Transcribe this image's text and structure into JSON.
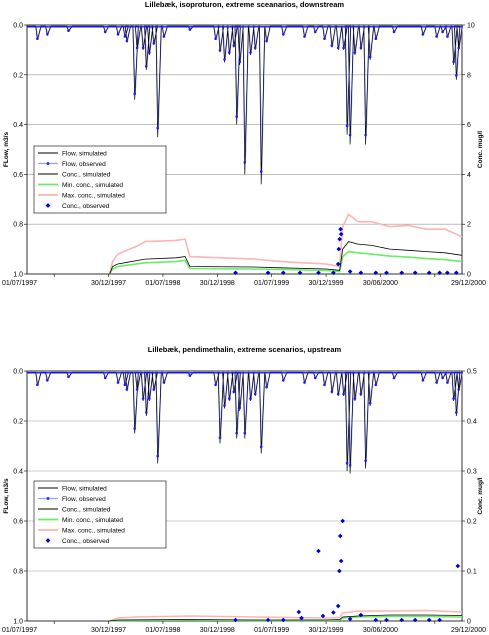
{
  "chart_data": [
    {
      "type": "line",
      "title": "Lillebæk, isoproturon, extreme sceanarios, downstream",
      "ylabel": "FLow, m3/s",
      "y2label": "Conc. mug/l",
      "xlim": [
        "1997-01-01",
        "2000-12-29"
      ],
      "ylim": [
        0,
        1.0
      ],
      "y_inverted": true,
      "y2lim": [
        0,
        10
      ],
      "x_tick_labels": [
        "01/07/1997",
        "30/12/1997",
        "01/07/1998",
        "30/12/1998",
        "01/07/1999",
        "30/12/1999",
        "30/06/2000",
        "29/12/2000"
      ],
      "y_tick_labels": [
        "0.0",
        "0.2",
        "0.4",
        "0.6",
        "0.8",
        "1.0"
      ],
      "y2_tick_labels": [
        "10",
        "8",
        "6",
        "4",
        "2",
        "0"
      ],
      "grid": "horizontal",
      "legend": {
        "position": "middle-left",
        "entries": [
          "Flow, simulated",
          "Flow, observed",
          "Conc., simulated",
          "Min. conc., simulated",
          "Max. conc., simulated",
          "Conc., observed"
        ]
      },
      "colors": {
        "flow_simulated": "#000000",
        "flow_observed": "#1a1aff",
        "conc_simulated": "#000000",
        "min_conc": "#66ee66",
        "max_conc": "#ffb3b3",
        "conc_observed": "#0000cc"
      },
      "flow_baseline": 0.005,
      "flow_peaks": [
        {
          "x": "1997-02-05",
          "y": 0.06
        },
        {
          "x": "1997-03-10",
          "y": 0.04
        },
        {
          "x": "1997-05-20",
          "y": 0.025
        },
        {
          "x": "1997-09-20",
          "y": 0.03
        },
        {
          "x": "1997-11-02",
          "y": 0.04
        },
        {
          "x": "1997-11-25",
          "y": 0.05
        },
        {
          "x": "1997-12-02",
          "y": 0.07
        },
        {
          "x": "1997-12-28",
          "y": 0.3
        },
        {
          "x": "1998-01-05",
          "y": 0.1
        },
        {
          "x": "1998-01-25",
          "y": 0.1
        },
        {
          "x": "1998-02-05",
          "y": 0.18
        },
        {
          "x": "1998-02-15",
          "y": 0.12
        },
        {
          "x": "1998-03-02",
          "y": 0.08
        },
        {
          "x": "1998-03-15",
          "y": 0.45
        },
        {
          "x": "1998-04-05",
          "y": 0.05
        },
        {
          "x": "1998-07-01",
          "y": 0.02
        },
        {
          "x": "1998-09-25",
          "y": 0.06
        },
        {
          "x": "1998-10-10",
          "y": 0.11
        },
        {
          "x": "1998-10-25",
          "y": 0.15
        },
        {
          "x": "1998-11-10",
          "y": 0.12
        },
        {
          "x": "1998-11-25",
          "y": 0.09
        },
        {
          "x": "1998-12-05",
          "y": 0.4
        },
        {
          "x": "1998-12-15",
          "y": 0.16
        },
        {
          "x": "1999-01-01",
          "y": 0.6
        },
        {
          "x": "1999-01-20",
          "y": 0.12
        },
        {
          "x": "1999-02-05",
          "y": 0.1
        },
        {
          "x": "1999-02-25",
          "y": 0.64
        },
        {
          "x": "1999-03-15",
          "y": 0.07
        },
        {
          "x": "1999-05-10",
          "y": 0.04
        },
        {
          "x": "1999-07-20",
          "y": 0.05
        },
        {
          "x": "1999-08-25",
          "y": 0.03
        },
        {
          "x": "1999-09-25",
          "y": 0.06
        },
        {
          "x": "1999-10-20",
          "y": 0.09
        },
        {
          "x": "1999-11-10",
          "y": 0.1
        },
        {
          "x": "1999-11-28",
          "y": 0.1
        },
        {
          "x": "1999-12-10",
          "y": 0.44
        },
        {
          "x": "1999-12-20",
          "y": 0.48
        },
        {
          "x": "2000-01-05",
          "y": 0.12
        },
        {
          "x": "2000-01-25",
          "y": 0.1
        },
        {
          "x": "2000-02-10",
          "y": 0.48
        },
        {
          "x": "2000-02-25",
          "y": 0.14
        },
        {
          "x": "2000-03-15",
          "y": 0.06
        },
        {
          "x": "2000-05-15",
          "y": 0.03
        },
        {
          "x": "2000-08-20",
          "y": 0.04
        },
        {
          "x": "2000-10-05",
          "y": 0.05
        },
        {
          "x": "2000-10-25",
          "y": 0.03
        },
        {
          "x": "2000-11-10",
          "y": 0.05
        },
        {
          "x": "2000-12-01",
          "y": 0.16
        },
        {
          "x": "2000-12-10",
          "y": 0.22
        },
        {
          "x": "2000-12-18",
          "y": 0.1
        }
      ],
      "conc_simulated": [
        {
          "x": "1997-10-05",
          "y": 0.0
        },
        {
          "x": "1997-10-15",
          "y": 0.3
        },
        {
          "x": "1997-11-01",
          "y": 0.4
        },
        {
          "x": "1998-02-01",
          "y": 0.6
        },
        {
          "x": "1998-05-15",
          "y": 0.65
        },
        {
          "x": "1998-06-15",
          "y": 0.7
        },
        {
          "x": "1998-07-01",
          "y": 0.3
        },
        {
          "x": "1999-02-01",
          "y": 0.28
        },
        {
          "x": "1999-05-01",
          "y": 0.25
        },
        {
          "x": "1999-10-01",
          "y": 0.2
        },
        {
          "x": "1999-11-15",
          "y": 0.15
        },
        {
          "x": "1999-11-25",
          "y": 1.0
        },
        {
          "x": "1999-12-15",
          "y": 1.3
        },
        {
          "x": "2000-01-15",
          "y": 1.2
        },
        {
          "x": "2000-03-01",
          "y": 1.15
        },
        {
          "x": "2000-05-01",
          "y": 1.0
        },
        {
          "x": "2000-07-01",
          "y": 0.95
        },
        {
          "x": "2000-09-01",
          "y": 0.9
        },
        {
          "x": "2000-11-01",
          "y": 0.85
        },
        {
          "x": "2000-12-29",
          "y": 0.75
        }
      ],
      "min_conc": [
        {
          "x": "1997-10-05",
          "y": 0.0
        },
        {
          "x": "1997-10-15",
          "y": 0.2
        },
        {
          "x": "1997-11-01",
          "y": 0.3
        },
        {
          "x": "1998-02-01",
          "y": 0.45
        },
        {
          "x": "1998-05-15",
          "y": 0.5
        },
        {
          "x": "1998-06-15",
          "y": 0.55
        },
        {
          "x": "1998-07-01",
          "y": 0.22
        },
        {
          "x": "1999-02-01",
          "y": 0.2
        },
        {
          "x": "1999-05-01",
          "y": 0.18
        },
        {
          "x": "1999-10-01",
          "y": 0.14
        },
        {
          "x": "1999-11-15",
          "y": 0.1
        },
        {
          "x": "1999-11-25",
          "y": 0.7
        },
        {
          "x": "1999-12-15",
          "y": 0.9
        },
        {
          "x": "2000-01-15",
          "y": 0.85
        },
        {
          "x": "2000-03-01",
          "y": 0.8
        },
        {
          "x": "2000-05-01",
          "y": 0.72
        },
        {
          "x": "2000-07-01",
          "y": 0.68
        },
        {
          "x": "2000-09-01",
          "y": 0.62
        },
        {
          "x": "2000-11-01",
          "y": 0.58
        },
        {
          "x": "2000-12-29",
          "y": 0.5
        }
      ],
      "max_conc": [
        {
          "x": "1997-10-05",
          "y": 0.0
        },
        {
          "x": "1997-10-15",
          "y": 0.5
        },
        {
          "x": "1997-11-01",
          "y": 0.8
        },
        {
          "x": "1998-01-01",
          "y": 1.1
        },
        {
          "x": "1998-02-01",
          "y": 1.3
        },
        {
          "x": "1998-05-15",
          "y": 1.35
        },
        {
          "x": "1998-06-15",
          "y": 1.4
        },
        {
          "x": "1998-07-01",
          "y": 0.7
        },
        {
          "x": "1999-02-01",
          "y": 0.6
        },
        {
          "x": "1999-05-01",
          "y": 0.5
        },
        {
          "x": "1999-10-01",
          "y": 0.4
        },
        {
          "x": "1999-11-15",
          "y": 0.3
        },
        {
          "x": "1999-11-25",
          "y": 1.9
        },
        {
          "x": "1999-12-15",
          "y": 2.4
        },
        {
          "x": "2000-01-15",
          "y": 2.1
        },
        {
          "x": "2000-03-01",
          "y": 2.1
        },
        {
          "x": "2000-05-01",
          "y": 1.9
        },
        {
          "x": "2000-07-01",
          "y": 1.95
        },
        {
          "x": "2000-09-01",
          "y": 1.8
        },
        {
          "x": "2000-11-01",
          "y": 1.8
        },
        {
          "x": "2000-12-29",
          "y": 1.5
        }
      ],
      "conc_observed": [
        {
          "x": "1998-12-01",
          "y": 0.05
        },
        {
          "x": "1999-03-20",
          "y": 0.05
        },
        {
          "x": "1999-05-10",
          "y": 0.05
        },
        {
          "x": "1999-07-05",
          "y": 0.05
        },
        {
          "x": "1999-09-05",
          "y": 0.05
        },
        {
          "x": "1999-10-25",
          "y": 0.05
        },
        {
          "x": "1999-11-10",
          "y": 0.4
        },
        {
          "x": "1999-11-12",
          "y": 1.0
        },
        {
          "x": "1999-11-15",
          "y": 1.4
        },
        {
          "x": "1999-11-18",
          "y": 1.8
        },
        {
          "x": "1999-11-20",
          "y": 1.6
        },
        {
          "x": "1999-12-20",
          "y": 0.1
        },
        {
          "x": "2000-01-25",
          "y": 0.05
        },
        {
          "x": "2000-03-15",
          "y": 0.05
        },
        {
          "x": "2000-04-20",
          "y": 0.05
        },
        {
          "x": "2000-06-10",
          "y": 0.05
        },
        {
          "x": "2000-07-25",
          "y": 0.05
        },
        {
          "x": "2000-09-10",
          "y": 0.05
        },
        {
          "x": "2000-10-15",
          "y": 0.05
        },
        {
          "x": "2000-11-10",
          "y": 0.05
        },
        {
          "x": "2000-12-10",
          "y": 0.05
        }
      ]
    },
    {
      "type": "line",
      "title": "Lillebæk, pendimethalin, extreme scenarios, upstream",
      "ylabel": "FLow, m3/s",
      "y2label": "Conc. mug/l",
      "xlim": [
        "1997-01-01",
        "2000-12-29"
      ],
      "ylim": [
        0,
        1.0
      ],
      "y_inverted": true,
      "y2lim": [
        0,
        0.5
      ],
      "x_tick_labels": [
        "01/07/1997",
        "30/12/1997",
        "01/07/1998",
        "30/12/1998",
        "01/07/1999",
        "30/12/1999",
        "30/06/2000",
        "29/12/2000"
      ],
      "y_tick_labels": [
        "0.0",
        "0.2",
        "0.4",
        "0.6",
        "0.8",
        "1.0"
      ],
      "y2_tick_labels": [
        "0.5",
        "0.4",
        "0.3",
        "0.2",
        "0.1",
        "0"
      ],
      "grid": "horizontal",
      "legend": {
        "position": "middle-left",
        "entries": [
          "Flow, simulated",
          "Flow, observed",
          "Conc., simulated",
          "Min. conc., simulated",
          "Max. conc., simulated",
          "Conc., observed"
        ]
      },
      "colors": {
        "flow_simulated": "#000000",
        "flow_observed": "#1a1aff",
        "conc_simulated": "#000000",
        "min_conc": "#66ee66",
        "max_conc": "#ffb3b3",
        "conc_observed": "#0000cc"
      },
      "flow_baseline": 0.005,
      "flow_peaks": [
        {
          "x": "1997-02-05",
          "y": 0.06
        },
        {
          "x": "1997-03-10",
          "y": 0.04
        },
        {
          "x": "1997-05-20",
          "y": 0.025
        },
        {
          "x": "1997-09-20",
          "y": 0.03
        },
        {
          "x": "1997-11-02",
          "y": 0.05
        },
        {
          "x": "1997-11-25",
          "y": 0.06
        },
        {
          "x": "1997-12-02",
          "y": 0.08
        },
        {
          "x": "1997-12-28",
          "y": 0.25
        },
        {
          "x": "1998-01-05",
          "y": 0.08
        },
        {
          "x": "1998-01-25",
          "y": 0.12
        },
        {
          "x": "1998-02-05",
          "y": 0.18
        },
        {
          "x": "1998-02-15",
          "y": 0.12
        },
        {
          "x": "1998-03-02",
          "y": 0.08
        },
        {
          "x": "1998-03-15",
          "y": 0.37
        },
        {
          "x": "1998-04-05",
          "y": 0.05
        },
        {
          "x": "1998-07-01",
          "y": 0.02
        },
        {
          "x": "1998-09-25",
          "y": 0.06
        },
        {
          "x": "1998-10-10",
          "y": 0.29
        },
        {
          "x": "1998-10-25",
          "y": 0.15
        },
        {
          "x": "1998-11-10",
          "y": 0.12
        },
        {
          "x": "1998-11-25",
          "y": 0.09
        },
        {
          "x": "1998-12-05",
          "y": 0.27
        },
        {
          "x": "1998-12-15",
          "y": 0.16
        },
        {
          "x": "1999-01-01",
          "y": 0.27
        },
        {
          "x": "1999-01-20",
          "y": 0.12
        },
        {
          "x": "1999-02-05",
          "y": 0.1
        },
        {
          "x": "1999-02-25",
          "y": 0.33
        },
        {
          "x": "1999-03-15",
          "y": 0.07
        },
        {
          "x": "1999-05-10",
          "y": 0.04
        },
        {
          "x": "1999-07-20",
          "y": 0.05
        },
        {
          "x": "1999-08-25",
          "y": 0.03
        },
        {
          "x": "1999-09-25",
          "y": 0.06
        },
        {
          "x": "1999-10-20",
          "y": 0.09
        },
        {
          "x": "1999-11-10",
          "y": 0.1
        },
        {
          "x": "1999-11-28",
          "y": 0.1
        },
        {
          "x": "1999-12-10",
          "y": 0.4
        },
        {
          "x": "1999-12-20",
          "y": 0.41
        },
        {
          "x": "2000-01-05",
          "y": 0.12
        },
        {
          "x": "2000-01-25",
          "y": 0.1
        },
        {
          "x": "2000-02-10",
          "y": 0.39
        },
        {
          "x": "2000-02-25",
          "y": 0.14
        },
        {
          "x": "2000-03-15",
          "y": 0.06
        },
        {
          "x": "2000-05-15",
          "y": 0.03
        },
        {
          "x": "2000-08-20",
          "y": 0.04
        },
        {
          "x": "2000-10-05",
          "y": 0.05
        },
        {
          "x": "2000-10-25",
          "y": 0.03
        },
        {
          "x": "2000-11-10",
          "y": 0.05
        },
        {
          "x": "2000-12-01",
          "y": 0.12
        },
        {
          "x": "2000-12-10",
          "y": 0.18
        },
        {
          "x": "2000-12-18",
          "y": 0.08
        }
      ],
      "conc_simulated": [
        {
          "x": "1997-10-05",
          "y": 0.0
        },
        {
          "x": "1997-11-01",
          "y": 0.002
        },
        {
          "x": "1998-07-01",
          "y": 0.003
        },
        {
          "x": "1999-02-01",
          "y": 0.002
        },
        {
          "x": "1999-10-01",
          "y": 0.002
        },
        {
          "x": "1999-11-15",
          "y": 0.003
        },
        {
          "x": "1999-11-25",
          "y": 0.008
        },
        {
          "x": "2000-01-15",
          "y": 0.01
        },
        {
          "x": "2000-05-01",
          "y": 0.012
        },
        {
          "x": "2000-09-01",
          "y": 0.012
        },
        {
          "x": "2000-12-29",
          "y": 0.011
        }
      ],
      "min_conc": [
        {
          "x": "1997-10-05",
          "y": 0.0
        },
        {
          "x": "1997-11-01",
          "y": 0.001
        },
        {
          "x": "1998-07-01",
          "y": 0.002
        },
        {
          "x": "1999-02-01",
          "y": 0.001
        },
        {
          "x": "1999-10-01",
          "y": 0.001
        },
        {
          "x": "1999-11-15",
          "y": 0.002
        },
        {
          "x": "1999-11-25",
          "y": 0.006
        },
        {
          "x": "2000-01-15",
          "y": 0.008
        },
        {
          "x": "2000-05-01",
          "y": 0.009
        },
        {
          "x": "2000-09-01",
          "y": 0.009
        },
        {
          "x": "2000-12-29",
          "y": 0.008
        }
      ],
      "max_conc": [
        {
          "x": "1997-10-05",
          "y": 0.0
        },
        {
          "x": "1997-11-01",
          "y": 0.006
        },
        {
          "x": "1998-01-01",
          "y": 0.008
        },
        {
          "x": "1998-07-01",
          "y": 0.01
        },
        {
          "x": "1999-02-01",
          "y": 0.008
        },
        {
          "x": "1999-10-01",
          "y": 0.006
        },
        {
          "x": "1999-11-15",
          "y": 0.007
        },
        {
          "x": "1999-11-25",
          "y": 0.016
        },
        {
          "x": "2000-01-15",
          "y": 0.02
        },
        {
          "x": "2000-05-01",
          "y": 0.02
        },
        {
          "x": "2000-09-01",
          "y": 0.021
        },
        {
          "x": "2000-12-29",
          "y": 0.018
        }
      ],
      "conc_observed": [
        {
          "x": "1998-12-01",
          "y": 0.002
        },
        {
          "x": "1999-03-20",
          "y": 0.002
        },
        {
          "x": "1999-05-10",
          "y": 0.002
        },
        {
          "x": "1999-07-01",
          "y": 0.018
        },
        {
          "x": "1999-07-10",
          "y": 0.006
        },
        {
          "x": "1999-09-05",
          "y": 0.14
        },
        {
          "x": "1999-09-20",
          "y": 0.01
        },
        {
          "x": "1999-10-25",
          "y": 0.017
        },
        {
          "x": "1999-11-10",
          "y": 0.03
        },
        {
          "x": "1999-11-14",
          "y": 0.1
        },
        {
          "x": "1999-11-17",
          "y": 0.17
        },
        {
          "x": "1999-11-20",
          "y": 0.12
        },
        {
          "x": "1999-11-25",
          "y": 0.2
        },
        {
          "x": "1999-12-20",
          "y": 0.004
        },
        {
          "x": "2000-01-25",
          "y": 0.012
        },
        {
          "x": "2000-03-15",
          "y": 0.002
        },
        {
          "x": "2000-04-20",
          "y": 0.002
        },
        {
          "x": "2000-06-10",
          "y": 0.002
        },
        {
          "x": "2000-07-25",
          "y": 0.002
        },
        {
          "x": "2000-09-10",
          "y": 0.002
        },
        {
          "x": "2000-10-15",
          "y": 0.002
        },
        {
          "x": "2000-12-15",
          "y": 0.11
        }
      ]
    }
  ]
}
